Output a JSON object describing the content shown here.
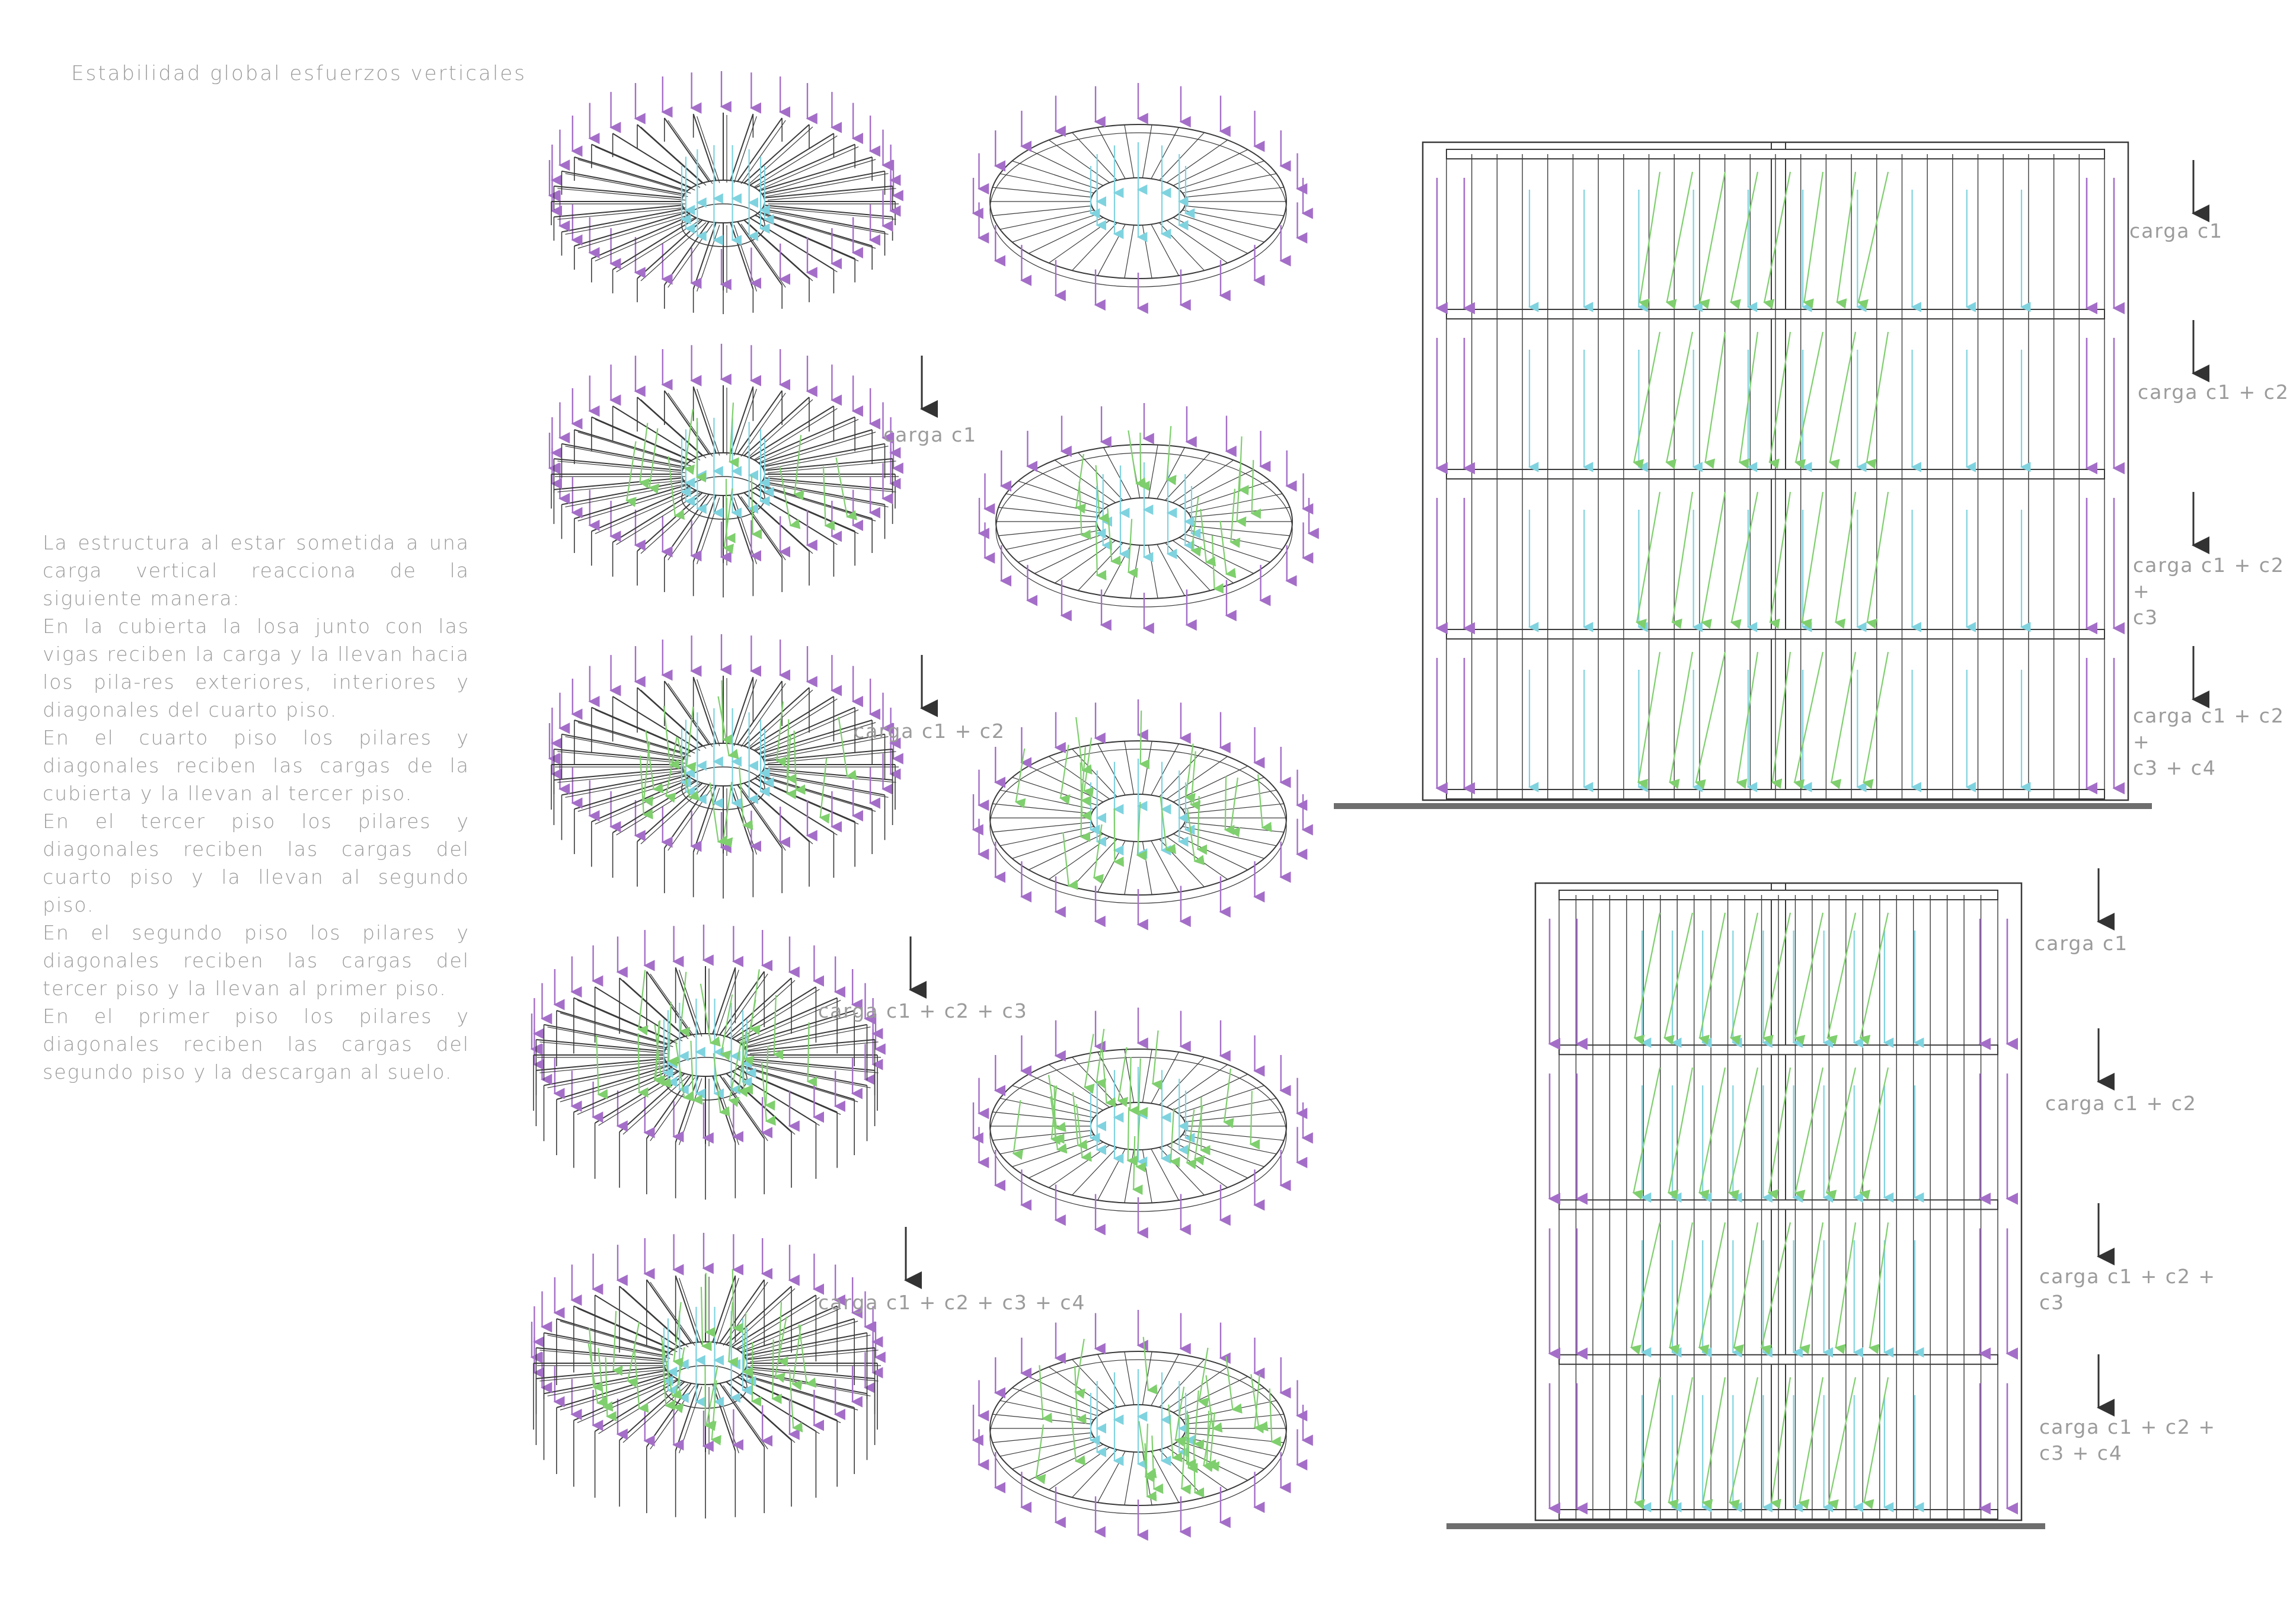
{
  "title": "Estabilidad global esfuerzos verticales",
  "description": [
    "La estructura al estar sometida a una carga vertical reacciona de la siguiente manera:",
    "En la cubierta la losa junto con las vigas reciben la carga y la llevan hacia los pila-res exteriores, interiores y diagonales del cuarto piso.",
    "En el cuarto piso los pilares y diagonales reciben las cargas de la cubierta y la llevan al tercer piso.",
    "En el tercer piso los pilares y diagonales reciben las cargas del cuarto piso y la llevan al segundo piso.",
    "En el segundo piso los pilares y diagonales reciben las cargas del tercer piso y la llevan al primer piso.",
    "En el primer piso los pilares y diagonales reciben las cargas del segundo piso y la descargan al suelo."
  ],
  "load_labels": {
    "c1": "carga c1",
    "c1_c2": "carga c1 + c2",
    "c1_c2_c3": "carga c1 + c2 + c3",
    "c1_c2_c3_c4": "carga c1 + c2 + c3 + c4",
    "c1_c2_c3_wrapped": "carga c1 + c2 +\nc3",
    "c1_c2_c3_c4_wrapped": "carga c1 + c2 +\nc3 + c4"
  },
  "colors": {
    "load_arrow": "#a46ec8",
    "interior_load": "#7fd3df",
    "diagonal_load": "#7fcf6e",
    "structure_line": "#3a3a3a",
    "ground": "#6e6e6e",
    "text": "#9b9b9b"
  }
}
